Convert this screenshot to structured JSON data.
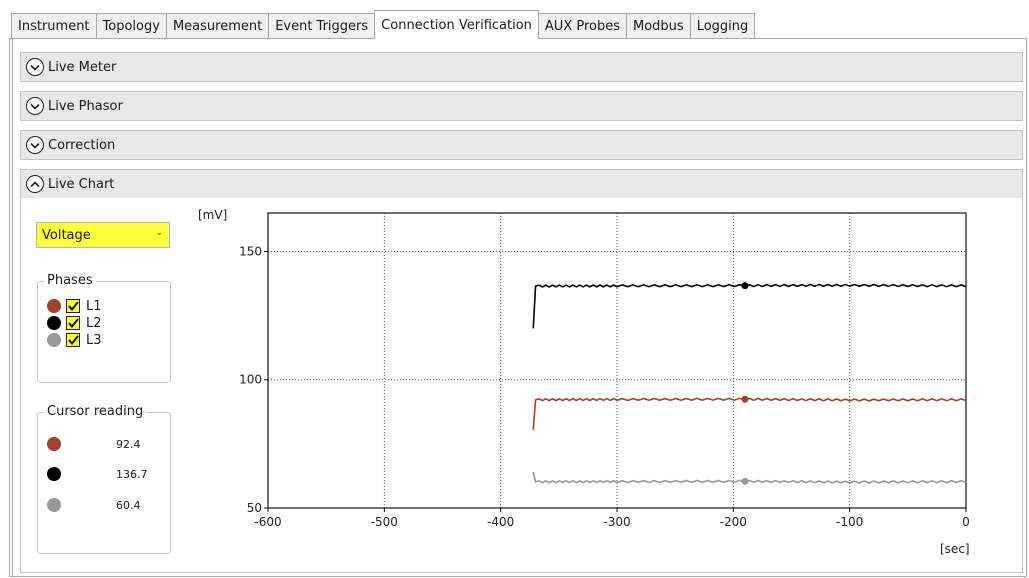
{
  "tabs": [
    {
      "label": "Instrument",
      "active": false
    },
    {
      "label": "Topology",
      "active": false
    },
    {
      "label": "Measurement",
      "active": false
    },
    {
      "label": "Event Triggers",
      "active": false
    },
    {
      "label": "Connection Verification",
      "active": true
    },
    {
      "label": "AUX Probes",
      "active": false
    },
    {
      "label": "Modbus",
      "active": false
    },
    {
      "label": "Logging",
      "active": false
    }
  ],
  "sections": {
    "live_meter": {
      "label": "Live Meter",
      "expanded": false,
      "icon": "chevron-down-icon"
    },
    "live_phasor": {
      "label": "Live Phasor",
      "expanded": false,
      "icon": "chevron-down-icon"
    },
    "correction": {
      "label": "Correction",
      "expanded": false,
      "icon": "chevron-down-icon"
    },
    "live_chart": {
      "label": "Live Chart",
      "expanded": true,
      "icon": "chevron-up-icon"
    }
  },
  "quantity_select": {
    "value": "Voltage"
  },
  "phases": {
    "title": "Phases",
    "items": [
      {
        "label": "L1",
        "color": "#a0422e",
        "checked": true
      },
      {
        "label": "L2",
        "color": "#000000",
        "checked": true
      },
      {
        "label": "L3",
        "color": "#999999",
        "checked": true
      }
    ]
  },
  "cursor": {
    "title": "Cursor reading",
    "values": [
      {
        "phase": "L1",
        "color": "#a0422e",
        "value": "92.4"
      },
      {
        "phase": "L2",
        "color": "#000000",
        "value": "136.7"
      },
      {
        "phase": "L3",
        "color": "#999999",
        "value": "60.4"
      }
    ]
  },
  "chart_data": {
    "type": "line",
    "y_unit": "[mV]",
    "x_unit": "[sec]",
    "xlim": [
      -600,
      0
    ],
    "ylim": [
      50,
      165
    ],
    "x_ticks": [
      -600,
      -500,
      -400,
      -300,
      -200,
      -100,
      0
    ],
    "y_ticks": [
      50,
      100,
      150
    ],
    "grid": true,
    "cursor_x": -190,
    "series": [
      {
        "color": "#a0422e",
        "start": {
          "x": -372,
          "y": 80.5
        },
        "points": [
          {
            "x": -370,
            "y": 92.2
          },
          {
            "x": -300,
            "y": 92.3
          },
          {
            "x": -190,
            "y": 92.4
          },
          {
            "x": -100,
            "y": 92.1
          },
          {
            "x": 0,
            "y": 92.2
          }
        ]
      },
      {
        "color": "#000000",
        "start": {
          "x": -372,
          "y": 120.0
        },
        "points": [
          {
            "x": -370,
            "y": 136.5
          },
          {
            "x": -300,
            "y": 136.6
          },
          {
            "x": -190,
            "y": 136.7
          },
          {
            "x": -100,
            "y": 136.8
          },
          {
            "x": 0,
            "y": 136.6
          }
        ]
      },
      {
        "color": "#999999",
        "start": {
          "x": -372,
          "y": 64.0
        },
        "points": [
          {
            "x": -370,
            "y": 60.2
          },
          {
            "x": -300,
            "y": 60.3
          },
          {
            "x": -190,
            "y": 60.4
          },
          {
            "x": -100,
            "y": 60.1
          },
          {
            "x": 0,
            "y": 60.3
          }
        ]
      }
    ]
  }
}
